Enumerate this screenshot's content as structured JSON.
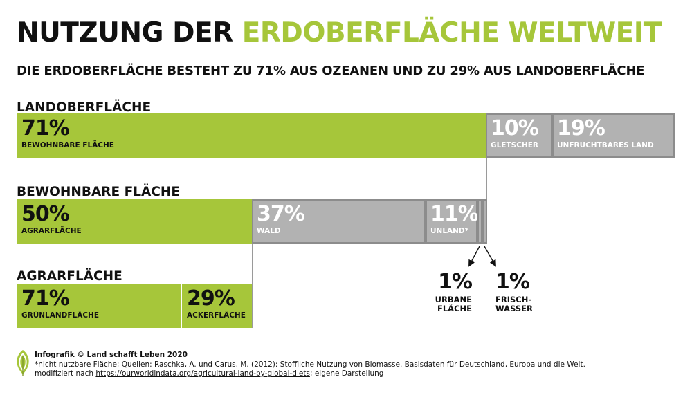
{
  "title": {
    "part1": "NUTZUNG DER",
    "part2": "ERDOBERFLÄCHE WELTWEIT"
  },
  "subtitle": "DIE ERDOBERFLÄCHE BESTEHT ZU 71% AUS OZEANEN UND ZU 29% AUS LANDOBERFLÄCHE",
  "colors": {
    "accent": "#a6c63a",
    "grey": "#b2b2b2",
    "text": "#111111"
  },
  "chart_data": [
    {
      "type": "bar",
      "title": "LANDOBERFLÄCHE",
      "segments": [
        {
          "value_label": "71%",
          "label": "BEWOHNBARE FLÄCHE",
          "value": 71,
          "color": "#a6c63a"
        },
        {
          "value_label": "10%",
          "label": "GLETSCHER",
          "value": 10,
          "color": "#b2b2b2"
        },
        {
          "value_label": "19%",
          "label": "UNFRUCHTBARES LAND",
          "value": 19,
          "color": "#b2b2b2"
        }
      ]
    },
    {
      "type": "bar",
      "title": "BEWOHNBARE FLÄCHE",
      "segments": [
        {
          "value_label": "50%",
          "label": "AGRARFLÄCHE",
          "value": 50,
          "color": "#a6c63a"
        },
        {
          "value_label": "37%",
          "label": "WALD",
          "value": 37,
          "color": "#b2b2b2"
        },
        {
          "value_label": "11%",
          "label": "UNLAND*",
          "value": 11,
          "color": "#b2b2b2"
        },
        {
          "value_label": "1%",
          "label": "URBANE FLÄCHE",
          "value": 1,
          "color": "#b2b2b2"
        },
        {
          "value_label": "1%",
          "label": "FRISCH-WASSER",
          "value": 1,
          "color": "#b2b2b2"
        }
      ]
    },
    {
      "type": "bar",
      "title": "AGRARFLÄCHE",
      "segments": [
        {
          "value_label": "71%",
          "label": "GRÜNLANDFLÄCHE",
          "value": 71,
          "color": "#a6c63a"
        },
        {
          "value_label": "29%",
          "label": "ACKERFLÄCHE",
          "value": 29,
          "color": "#a6c63a"
        }
      ]
    }
  ],
  "callouts": [
    {
      "value": "1%",
      "line1": "URBANE",
      "line2": "FLÄCHE"
    },
    {
      "value": "1%",
      "line1": "FRISCH-",
      "line2": "WASSER"
    }
  ],
  "footer": {
    "credit": "Infografik © Land schafft Leben 2020",
    "sources": "*nicht nutzbare Fläche; Quellen: Raschka, A. und Carus, M. (2012): Stoffliche Nutzung von Biomasse. Basisdaten für Deutschland, Europa und die Welt.",
    "modified_prefix": "modifiziert nach ",
    "link": "https://ourworldindata.org/agricultural-land-by-global-diets",
    "modified_suffix": "; eigene Darstellung"
  }
}
